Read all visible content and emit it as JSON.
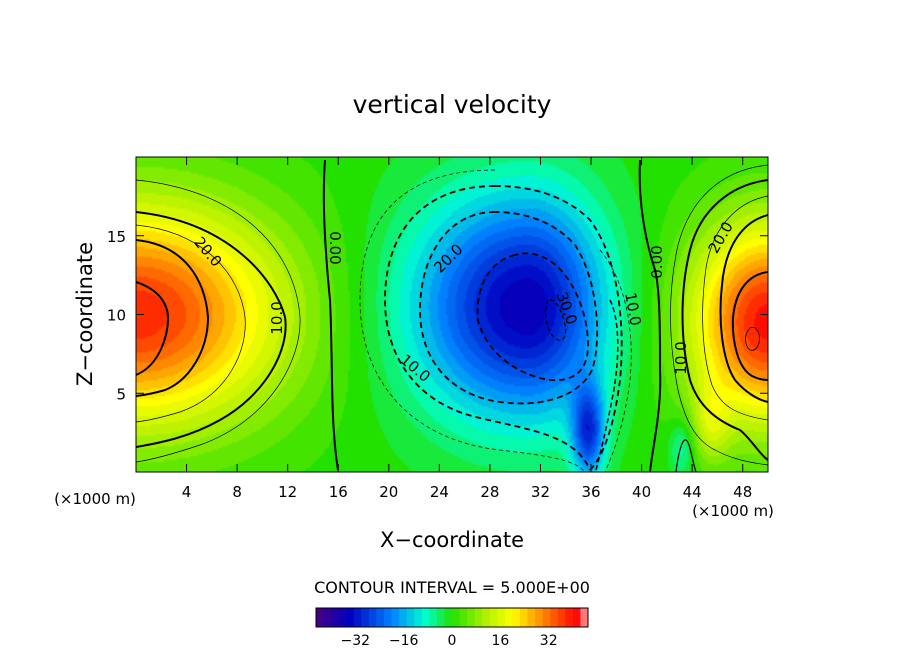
{
  "chart_data": {
    "type": "heatmap",
    "title": "vertical velocity",
    "xlabel": "X−coordinate",
    "ylabel": "Z−coordinate",
    "x_unit": "(×1000 m)",
    "y_unit": "(×1000 m)",
    "xlim": [
      0,
      50
    ],
    "ylim": [
      0,
      20
    ],
    "x_ticks": [
      "4",
      "8",
      "12",
      "16",
      "20",
      "24",
      "28",
      "32",
      "36",
      "40",
      "44",
      "48"
    ],
    "y_ticks": [
      "5",
      "10",
      "15"
    ],
    "contour_interval_label": "CONTOUR INTERVAL = 5.000E+00",
    "contour_labels": [
      "20.0",
      "10.0",
      "0.00",
      "20.0",
      "10.0",
      "30.0",
      "10.0",
      "0.00",
      "10.0",
      "20.0"
    ],
    "colorbar": {
      "ticks": [
        "−32",
        "−16",
        "0",
        "16",
        "32"
      ],
      "range": [
        -45,
        45
      ]
    },
    "value_range": [
      -45,
      45
    ],
    "features": [
      {
        "x": 0,
        "z": 10,
        "value": 38,
        "kind": "updraft"
      },
      {
        "x": 31,
        "z": 10.5,
        "value": -36,
        "kind": "downdraft"
      },
      {
        "x": 50,
        "z": 9.5,
        "value": 40,
        "kind": "updraft"
      }
    ],
    "grid": false,
    "legend": "bottom"
  }
}
